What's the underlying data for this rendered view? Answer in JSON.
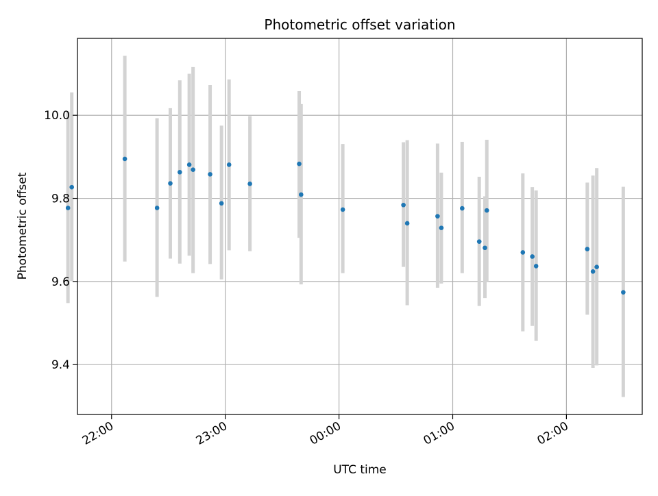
{
  "chart_data": {
    "type": "scatter",
    "title": "Photometric offset variation",
    "xlabel": "UTC time",
    "ylabel": "Photometric offset",
    "x_axis_type": "time",
    "x_range": [
      "21:42",
      "02:40"
    ],
    "ylim": [
      9.28,
      10.185
    ],
    "x_ticks": [
      "22:00",
      "23:00",
      "00:00",
      "01:00",
      "02:00"
    ],
    "y_ticks": [
      "9.4",
      "9.6",
      "9.8",
      "10.0"
    ],
    "y_tick_values": [
      9.4,
      9.6,
      9.8,
      10.0
    ],
    "grid": true,
    "legend": "none",
    "marker_color": "#1f77b4",
    "errorbar_color": "#d3d3d3",
    "points": [
      {
        "t": "21:37",
        "y": 9.777,
        "lo": 9.548,
        "hi": 10.008
      },
      {
        "t": "21:39",
        "y": 9.827,
        "lo": 9.601,
        "hi": 10.055
      },
      {
        "t": "22:07",
        "y": 9.895,
        "lo": 9.648,
        "hi": 10.143
      },
      {
        "t": "22:24",
        "y": 9.777,
        "lo": 9.563,
        "hi": 9.993
      },
      {
        "t": "22:31",
        "y": 9.836,
        "lo": 9.655,
        "hi": 10.017
      },
      {
        "t": "22:36",
        "y": 9.863,
        "lo": 9.643,
        "hi": 10.084
      },
      {
        "t": "22:41",
        "y": 9.881,
        "lo": 9.662,
        "hi": 10.1
      },
      {
        "t": "22:43",
        "y": 9.869,
        "lo": 9.62,
        "hi": 10.116
      },
      {
        "t": "22:52",
        "y": 9.858,
        "lo": 9.642,
        "hi": 10.073
      },
      {
        "t": "22:58",
        "y": 9.788,
        "lo": 9.605,
        "hi": 9.975
      },
      {
        "t": "23:02",
        "y": 9.881,
        "lo": 9.675,
        "hi": 10.086
      },
      {
        "t": "23:13",
        "y": 9.835,
        "lo": 9.673,
        "hi": 9.998
      },
      {
        "t": "23:39",
        "y": 9.883,
        "lo": 9.705,
        "hi": 10.058
      },
      {
        "t": "23:40",
        "y": 9.809,
        "lo": 9.593,
        "hi": 10.027
      },
      {
        "t": "00:02",
        "y": 9.773,
        "lo": 9.62,
        "hi": 9.931
      },
      {
        "t": "00:34",
        "y": 9.784,
        "lo": 9.635,
        "hi": 9.935
      },
      {
        "t": "00:36",
        "y": 9.74,
        "lo": 9.543,
        "hi": 9.94
      },
      {
        "t": "00:52",
        "y": 9.757,
        "lo": 9.585,
        "hi": 9.932
      },
      {
        "t": "00:54",
        "y": 9.729,
        "lo": 9.595,
        "hi": 9.862
      },
      {
        "t": "01:05",
        "y": 9.776,
        "lo": 9.62,
        "hi": 9.936
      },
      {
        "t": "01:14",
        "y": 9.696,
        "lo": 9.541,
        "hi": 9.852
      },
      {
        "t": "01:17",
        "y": 9.681,
        "lo": 9.56,
        "hi": 9.805
      },
      {
        "t": "01:18",
        "y": 9.771,
        "lo": 9.6,
        "hi": 9.941
      },
      {
        "t": "01:37",
        "y": 9.67,
        "lo": 9.48,
        "hi": 9.86
      },
      {
        "t": "01:42",
        "y": 9.66,
        "lo": 9.493,
        "hi": 9.827
      },
      {
        "t": "01:44",
        "y": 9.637,
        "lo": 9.457,
        "hi": 9.819
      },
      {
        "t": "02:11",
        "y": 9.678,
        "lo": 9.52,
        "hi": 9.838
      },
      {
        "t": "02:14",
        "y": 9.624,
        "lo": 9.392,
        "hi": 9.855
      },
      {
        "t": "02:16",
        "y": 9.635,
        "lo": 9.398,
        "hi": 9.873
      },
      {
        "t": "02:30",
        "y": 9.574,
        "lo": 9.322,
        "hi": 9.828
      }
    ]
  }
}
